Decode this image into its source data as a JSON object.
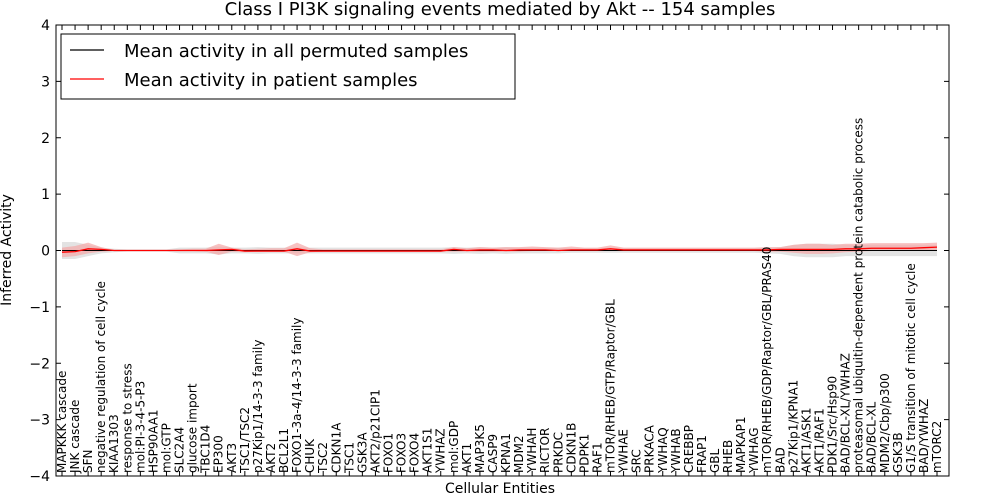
{
  "chart_data": {
    "type": "line",
    "title": "Class I PI3K signaling events mediated by Akt -- 154 samples",
    "xlabel": "Cellular Entities",
    "ylabel": "Inferred Activity",
    "ylim": [
      -4,
      4
    ],
    "yticks": [
      "4",
      "3",
      "2",
      "1",
      "0",
      "−1",
      "−2",
      "−3",
      "−4"
    ],
    "grid": false,
    "legend_position": "top-left",
    "colors": {
      "permuted": "#000000",
      "patient": "#ff0000",
      "patient_band": "#f4a6a6",
      "permuted_band": "#d9d9d9",
      "frame": "#000000",
      "background": "#ffffff"
    },
    "categories": [
      "MAPKKK cascade",
      "JNK cascade",
      "SFN",
      "negative regulation of cell cycle",
      "KIAA1303",
      "response to stress",
      "mol:PI-3-4-5-P3",
      "HSP90AA1",
      "mol:GTP",
      "SLC2A4",
      "glucose import",
      "TBC1D4",
      "EP300",
      "AKT3",
      "TSC1/TSC2",
      "p27Kip1/14-3-3 family",
      "AKT2",
      "BCL2L1",
      "FOXO1-3a-4/14-3-3 family",
      "CHUK",
      "TSC2",
      "CDKN1A",
      "TSC1",
      "GSK3A",
      "AKT2/p21CIP1",
      "FOXO1",
      "FOXO3",
      "FOXO4",
      "AKT1S1",
      "YWHAZ",
      "mol:GDP",
      "AKT1",
      "MAP3K5",
      "CASP9",
      "KPNA1",
      "MDM2",
      "YWHAH",
      "RICTOR",
      "PRKDC",
      "CDKN1B",
      "PDPK1",
      "RAF1",
      "mTOR/RHEB/GTP/Raptor/GBL",
      "YWHAE",
      "SRC",
      "PRKACA",
      "YWHAQ",
      "YWHAB",
      "CREBBP",
      "FRAP1",
      "GBL",
      "RHEB",
      "MAPKAP1",
      "YWHAG",
      "mTOR/RHEB/GDP/Raptor/GBL/PRAS40",
      "BAD",
      "p27Kip1/KPNA1",
      "AKT1/ASK1",
      "AKT1/RAF1",
      "PDK1/Src/Hsp90",
      "BAD/BCL-XL/YWHAZ",
      "proteasomal ubiquitin-dependent protein catabolic process",
      "BAD/BCL-XL",
      "MDM2/Cbp/p300",
      "GSK3B",
      "G1/S transition of mitotic cell cycle",
      "BAD/YWHAZ",
      "mTORC2"
    ],
    "series": [
      {
        "name": "Mean activity in all permuted samples",
        "color": "#000000",
        "values": [
          0,
          0,
          0,
          0,
          0,
          0,
          0,
          0,
          0,
          0,
          0,
          0,
          0,
          0,
          0,
          0,
          0,
          0,
          0,
          0,
          0,
          0,
          0,
          0,
          0,
          0,
          0,
          0,
          0,
          0,
          0,
          0,
          0,
          0,
          0,
          0,
          0,
          0,
          0,
          0,
          0,
          0,
          0,
          0,
          0,
          0,
          0,
          0,
          0,
          0,
          0,
          0,
          0,
          0,
          0,
          0,
          0,
          0,
          0,
          0,
          0,
          0,
          0,
          0,
          0,
          0,
          0,
          0
        ],
        "lower": [
          -0.15,
          -0.15,
          -0.1,
          -0.05,
          -0.03,
          -0.02,
          -0.02,
          -0.02,
          -0.02,
          -0.05,
          -0.05,
          -0.05,
          -0.07,
          -0.05,
          -0.05,
          -0.06,
          -0.05,
          -0.05,
          -0.05,
          -0.05,
          -0.05,
          -0.05,
          -0.05,
          -0.05,
          -0.05,
          -0.05,
          -0.05,
          -0.05,
          -0.05,
          -0.05,
          -0.06,
          -0.05,
          -0.06,
          -0.05,
          -0.06,
          -0.05,
          -0.05,
          -0.05,
          -0.05,
          -0.04,
          -0.04,
          -0.04,
          -0.04,
          -0.04,
          -0.04,
          -0.04,
          -0.04,
          -0.04,
          -0.04,
          -0.04,
          -0.04,
          -0.04,
          -0.04,
          -0.04,
          -0.05,
          -0.06,
          -0.1,
          -0.12,
          -0.12,
          -0.12,
          -0.1,
          -0.1,
          -0.1,
          -0.1,
          -0.1,
          -0.1,
          -0.1,
          -0.1
        ],
        "upper": [
          0.15,
          0.15,
          0.1,
          0.05,
          0.03,
          0.02,
          0.02,
          0.02,
          0.02,
          0.05,
          0.05,
          0.05,
          0.07,
          0.05,
          0.05,
          0.06,
          0.05,
          0.05,
          0.05,
          0.05,
          0.05,
          0.05,
          0.05,
          0.05,
          0.05,
          0.05,
          0.05,
          0.05,
          0.05,
          0.05,
          0.06,
          0.05,
          0.06,
          0.05,
          0.06,
          0.05,
          0.05,
          0.05,
          0.05,
          0.04,
          0.04,
          0.04,
          0.04,
          0.04,
          0.04,
          0.04,
          0.04,
          0.04,
          0.04,
          0.04,
          0.04,
          0.04,
          0.04,
          0.04,
          0.05,
          0.06,
          0.1,
          0.12,
          0.12,
          0.12,
          0.1,
          0.1,
          0.1,
          0.1,
          0.1,
          0.1,
          0.1,
          0.1
        ]
      },
      {
        "name": "Mean activity in patient samples",
        "color": "#ff0000",
        "values": [
          -0.03,
          -0.02,
          0.03,
          0.02,
          0,
          0,
          0,
          0,
          0,
          0,
          0,
          0,
          0.01,
          0.02,
          -0.01,
          -0.01,
          -0.01,
          -0.01,
          0.03,
          -0.01,
          -0.01,
          -0.01,
          -0.01,
          -0.01,
          -0.01,
          -0.01,
          -0.01,
          -0.01,
          -0.01,
          -0.01,
          0.02,
          0,
          0.01,
          0.01,
          0,
          0.01,
          0.01,
          0.01,
          0,
          0.01,
          0.01,
          0.01,
          0.03,
          0.01,
          0.01,
          0.01,
          0.01,
          0.01,
          0.01,
          0.01,
          0.01,
          0.01,
          0.01,
          0.01,
          0.01,
          0.02,
          0.02,
          0.02,
          0.02,
          0.02,
          0.03,
          0.03,
          0.04,
          0.04,
          0.04,
          0.04,
          0.05,
          0.06
        ],
        "lower": [
          -0.12,
          -0.1,
          -0.05,
          -0.02,
          -0.01,
          -0.01,
          -0.01,
          -0.01,
          -0.01,
          -0.01,
          -0.01,
          -0.02,
          -0.08,
          -0.02,
          -0.03,
          -0.02,
          -0.02,
          -0.02,
          -0.1,
          -0.03,
          -0.02,
          -0.02,
          -0.02,
          -0.02,
          -0.02,
          -0.02,
          -0.02,
          -0.02,
          -0.02,
          -0.02,
          -0.02,
          -0.02,
          -0.02,
          -0.02,
          -0.02,
          -0.02,
          -0.01,
          -0.01,
          -0.01,
          -0.01,
          -0.01,
          -0.01,
          -0.01,
          -0.01,
          -0.01,
          -0.01,
          -0.01,
          -0.01,
          -0.01,
          -0.01,
          -0.01,
          -0.01,
          -0.01,
          -0.01,
          -0.02,
          -0.02,
          -0.04,
          -0.06,
          -0.06,
          -0.05,
          -0.03,
          -0.02,
          -0.01,
          -0.01,
          -0.01,
          -0.01,
          -0.01,
          -0.01
        ],
        "upper": [
          0.05,
          0.08,
          0.14,
          0.06,
          0.01,
          0.01,
          0.01,
          0.01,
          0.01,
          0.02,
          0.03,
          0.03,
          0.12,
          0.05,
          0.02,
          0.03,
          0.04,
          0.04,
          0.14,
          0.04,
          0.02,
          0.02,
          0.02,
          0.02,
          0.02,
          0.02,
          0.02,
          0.02,
          0.02,
          0.02,
          0.06,
          0.04,
          0.06,
          0.05,
          0.06,
          0.06,
          0.07,
          0.06,
          0.05,
          0.07,
          0.05,
          0.05,
          0.09,
          0.05,
          0.05,
          0.05,
          0.05,
          0.05,
          0.05,
          0.05,
          0.05,
          0.05,
          0.05,
          0.05,
          0.06,
          0.06,
          0.1,
          0.12,
          0.12,
          0.1,
          0.12,
          0.12,
          0.13,
          0.13,
          0.13,
          0.13,
          0.13,
          0.14
        ]
      }
    ]
  }
}
